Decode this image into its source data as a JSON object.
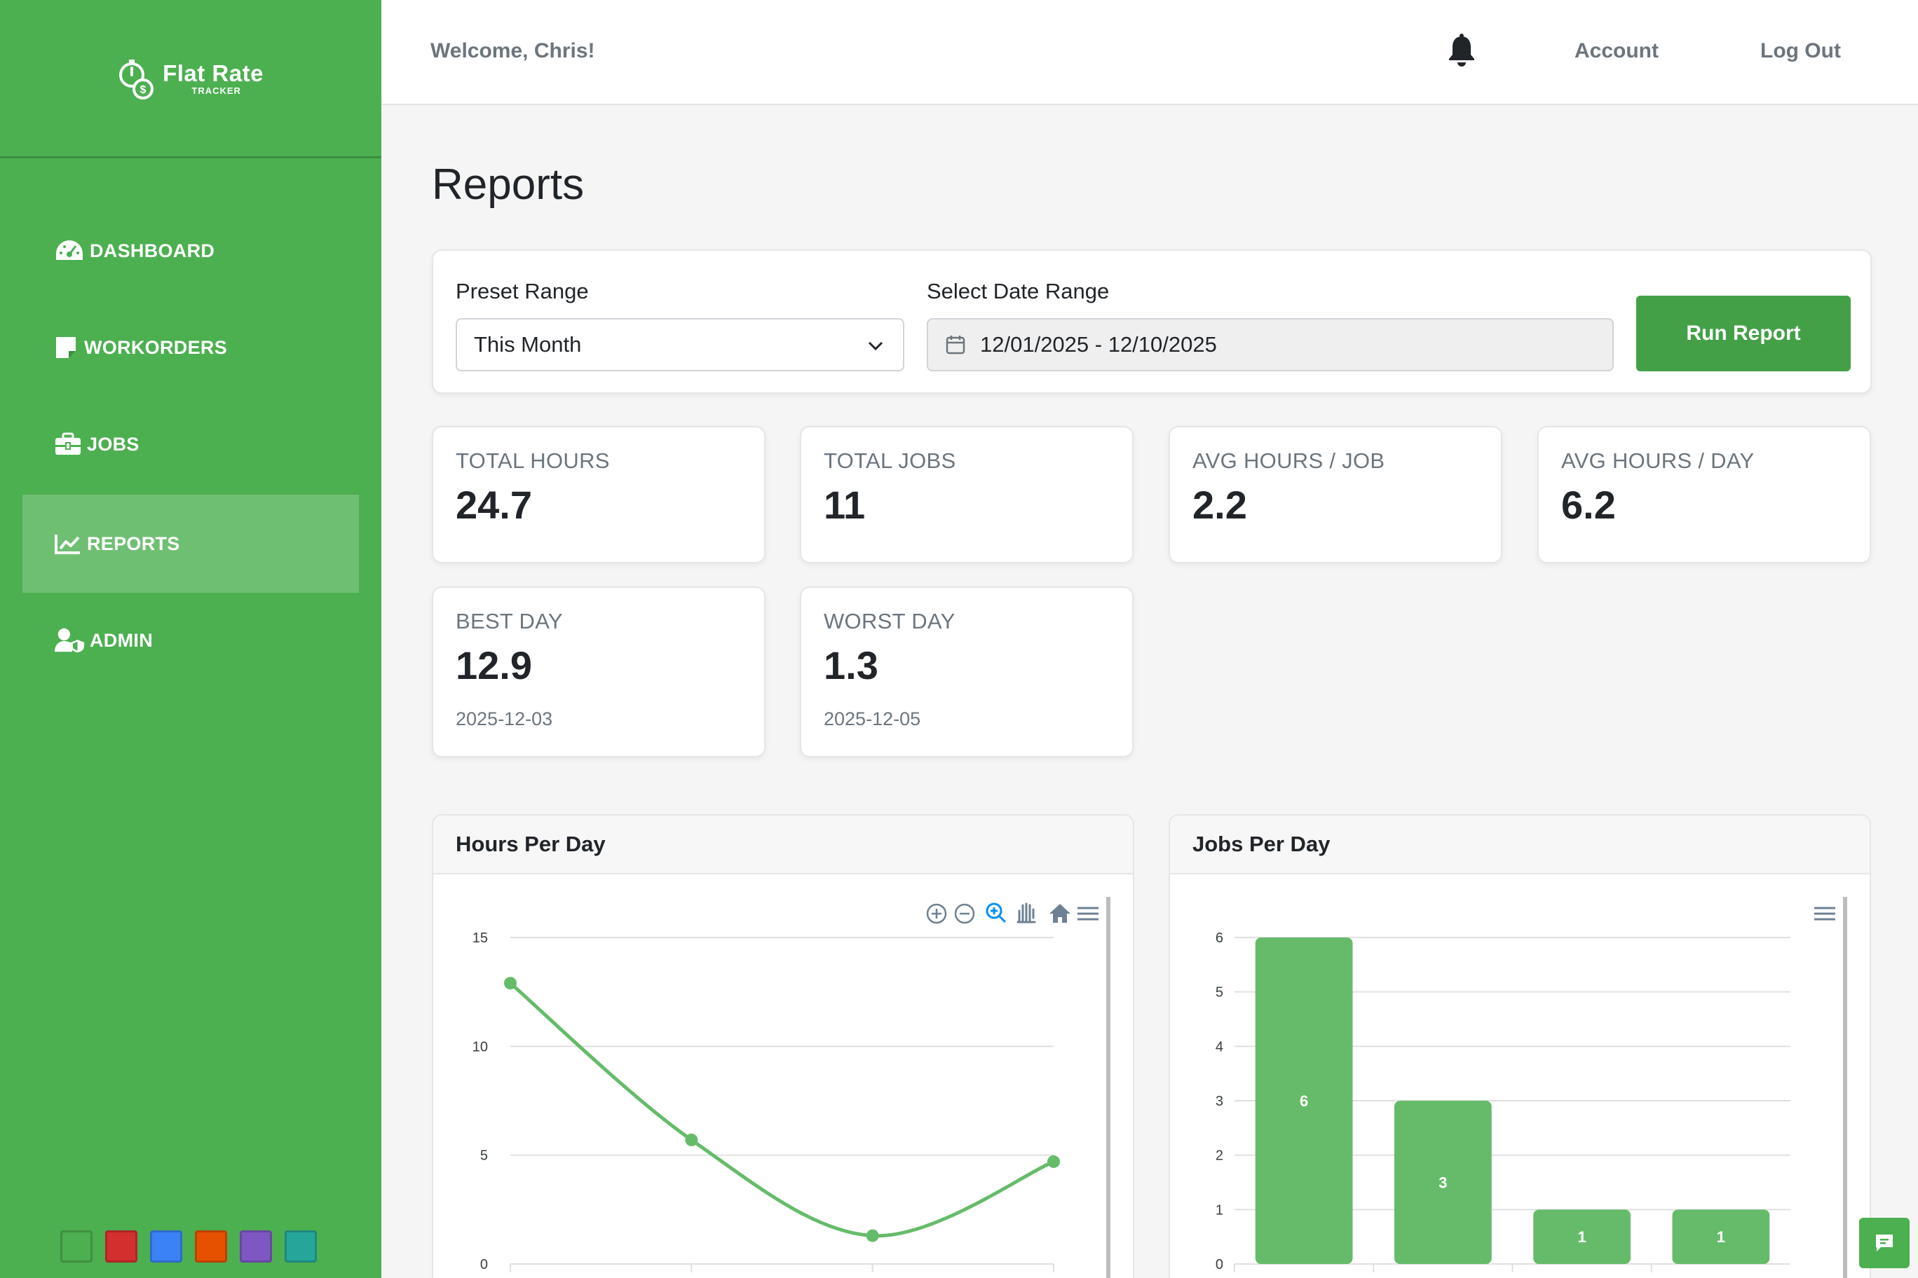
{
  "brand": {
    "name": "Flat Rate",
    "subtitle": "TRACKER"
  },
  "sidebar": {
    "items": [
      {
        "label": "DASHBOARD",
        "icon": "gauge-icon",
        "active": false
      },
      {
        "label": "WORKORDERS",
        "icon": "sticky-note-icon",
        "active": false
      },
      {
        "label": "JOBS",
        "icon": "toolbox-icon",
        "active": false
      },
      {
        "label": "REPORTS",
        "icon": "chart-line-icon",
        "active": true
      },
      {
        "label": "ADMIN",
        "icon": "user-shield-icon",
        "active": false
      }
    ],
    "theme_swatches": [
      "#4caf50",
      "#d32f2f",
      "#3b82f6",
      "#e65100",
      "#7e57c2",
      "#26a69a"
    ]
  },
  "header": {
    "welcome": "Welcome, Chris!",
    "account_label": "Account",
    "logout_label": "Log Out"
  },
  "page": {
    "title": "Reports"
  },
  "filters": {
    "preset_label": "Preset Range",
    "preset_value": "This Month",
    "date_label": "Select Date Range",
    "date_value": "12/01/2025 - 12/10/2025",
    "run_label": "Run Report"
  },
  "stats": [
    {
      "label": "TOTAL HOURS",
      "value": "24.7"
    },
    {
      "label": "TOTAL JOBS",
      "value": "11"
    },
    {
      "label": "AVG HOURS / JOB",
      "value": "2.2"
    },
    {
      "label": "AVG HOURS / DAY",
      "value": "6.2"
    },
    {
      "label": "BEST DAY",
      "value": "12.9",
      "date": "2025-12-03"
    },
    {
      "label": "WORST DAY",
      "value": "1.3",
      "date": "2025-12-05"
    }
  ],
  "colors": {
    "sidebar": "#4caf50",
    "active_nav": "#6fbf73",
    "primary_button": "#43a047",
    "series": "#66bb6a"
  },
  "chart_data": [
    {
      "type": "line",
      "title": "Hours Per Day",
      "y": [
        12.9,
        5.7,
        1.3,
        4.7
      ],
      "ylim": [
        0,
        15
      ],
      "yticks": [
        0,
        5,
        10,
        15
      ],
      "grid": true,
      "toolbar": [
        "zoom-in-icon",
        "zoom-out-icon",
        "selection-zoom-icon",
        "pan-icon",
        "home-icon",
        "menu-icon"
      ]
    },
    {
      "type": "bar",
      "title": "Jobs Per Day",
      "values": [
        6,
        3,
        1,
        1
      ],
      "ylim": [
        0,
        6
      ],
      "yticks": [
        0,
        1,
        2,
        3,
        4,
        5,
        6
      ],
      "grid": true,
      "data_labels": true,
      "toolbar": [
        "menu-icon"
      ]
    }
  ]
}
